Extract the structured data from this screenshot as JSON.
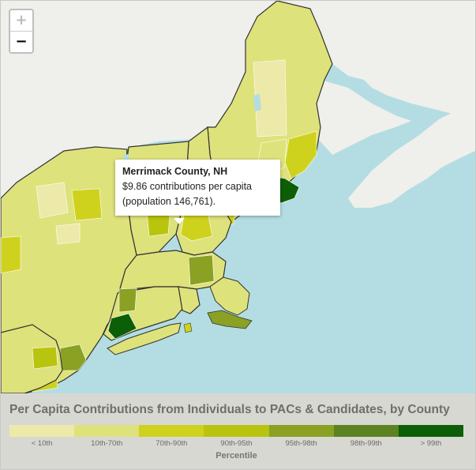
{
  "map": {
    "zoom_in_label": "+",
    "zoom_out_label": "−",
    "tooltip": {
      "title": "Merrimack County, NH",
      "line1": "$9.86 contributions per capita",
      "line2": "(population 146,761)."
    },
    "colors": {
      "ocean": "#b3dde3",
      "land": "#efefeb",
      "border": "#333333",
      "county_border": "#ffffff"
    }
  },
  "legend": {
    "title": "Per Capita Contributions from Individuals to PACs & Candidates, by County",
    "axis_label": "Percentile",
    "bins": [
      {
        "label": "< 10th",
        "color": "#ede9a9"
      },
      {
        "label": "10th-70th",
        "color": "#dee27b"
      },
      {
        "label": "70th-90th",
        "color": "#cfd21c"
      },
      {
        "label": "90th-95th",
        "color": "#b9c40e"
      },
      {
        "label": "95th-98th",
        "color": "#8aa123"
      },
      {
        "label": "98th-99th",
        "color": "#5c8222"
      },
      {
        "label": "> 99th",
        "color": "#0c5f06"
      }
    ]
  }
}
